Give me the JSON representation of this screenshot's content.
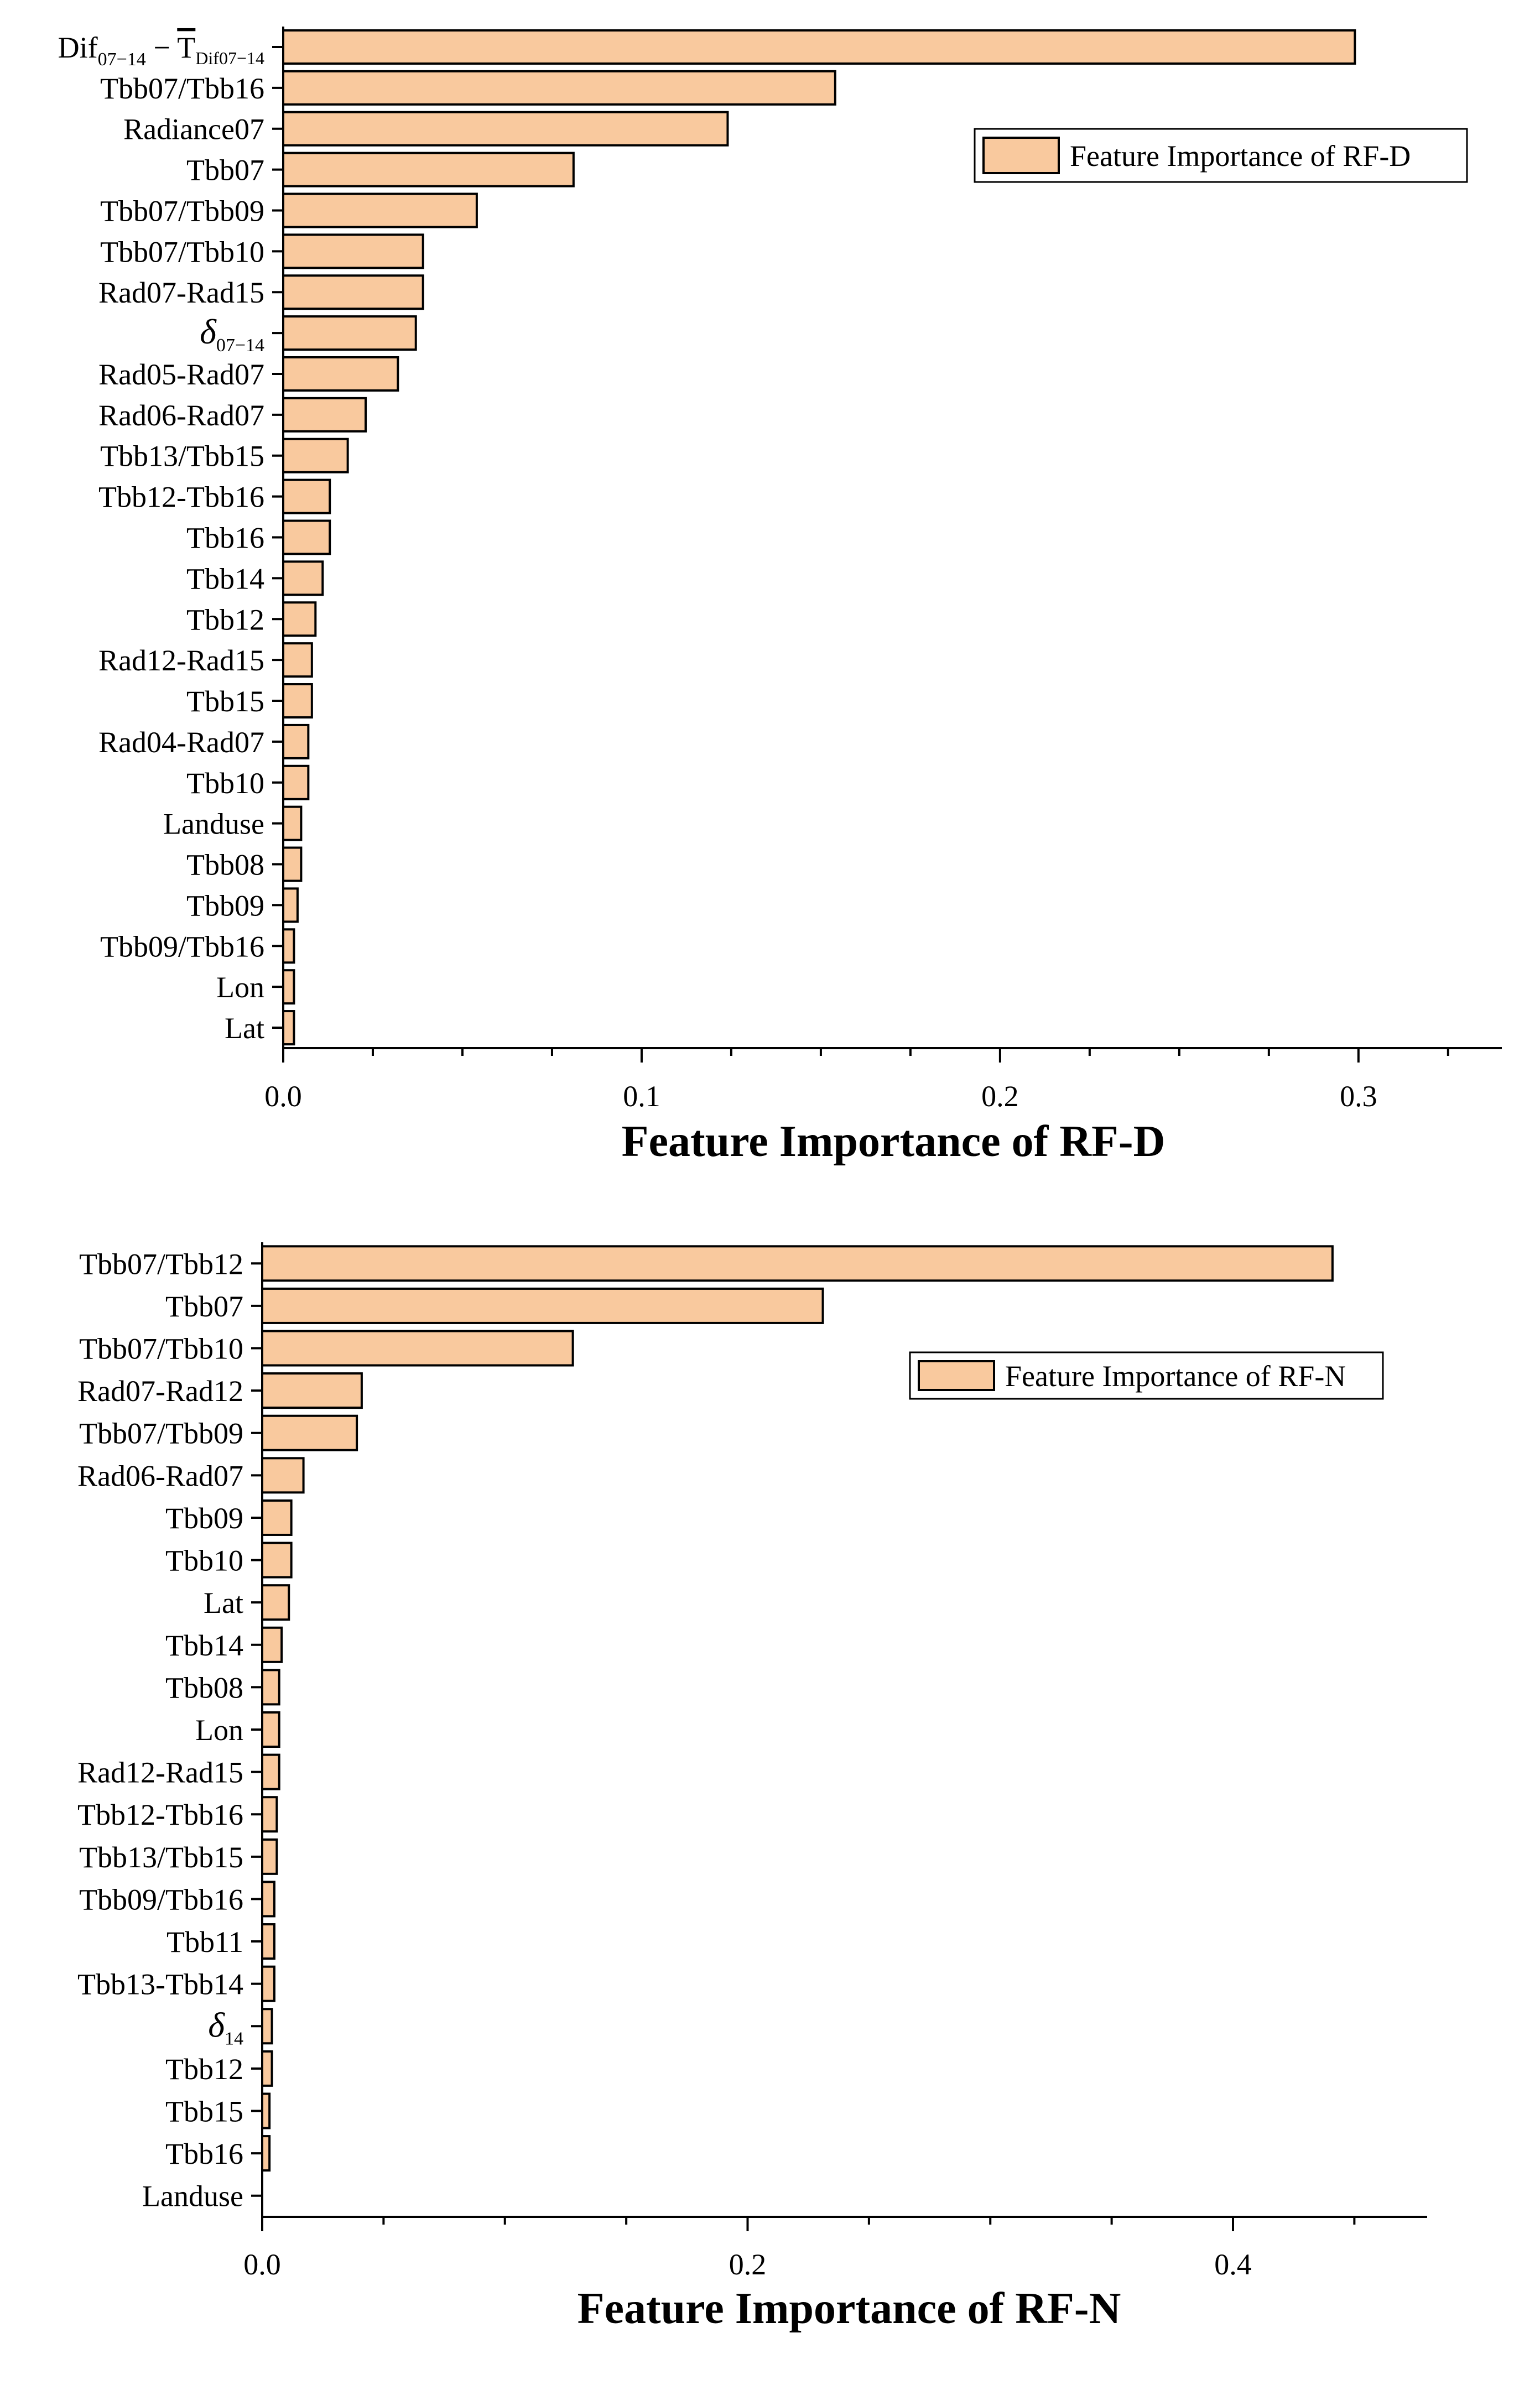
{
  "chart_data": [
    {
      "type": "bar",
      "orientation": "horizontal",
      "title": "",
      "xlabel": "Feature Importance of RF-D",
      "ylabel": "",
      "xlim": [
        0,
        0.34
      ],
      "xticks": [
        0.0,
        0.1,
        0.2,
        0.3
      ],
      "xtick_labels": [
        "0.0",
        "0.1",
        "0.2",
        "0.3"
      ],
      "grid": false,
      "legend": {
        "label": "Feature Importance of RF-D",
        "placement": "top-right"
      },
      "bar_color": "#f9c99e",
      "edge_color": "#000000",
      "categories": [
        "Dif07-14 − T̄Dif07-14",
        "Tbb07/Tbb16",
        "Radiance07",
        "Tbb07",
        "Tbb07/Tbb09",
        "Tbb07/Tbb10",
        "Rad07-Rad15",
        "δ07-14",
        "Rad05-Rad07",
        "Rad06-Rad07",
        "Tbb13/Tbb15",
        "Tbb12-Tbb16",
        "Tbb16",
        "Tbb14",
        "Tbb12",
        "Rad12-Rad15",
        "Tbb15",
        "Rad04-Rad07",
        "Tbb10",
        "Landuse",
        "Tbb08",
        "Tbb09",
        "Tbb09/Tbb16",
        "Lon",
        "Lat"
      ],
      "labels": [
        {
          "base": "Dif",
          "sub": "07−14",
          "mid": " − ",
          "base2": "T",
          "overline2": true,
          "sub2": "Dif07−14"
        },
        {
          "base": "Tbb07/Tbb16"
        },
        {
          "base": "Radiance07"
        },
        {
          "base": "Tbb07"
        },
        {
          "base": "Tbb07/Tbb09"
        },
        {
          "base": "Tbb07/Tbb10"
        },
        {
          "base": "Rad07-Rad15"
        },
        {
          "base": "δ",
          "sub": "07−14",
          "italic": true
        },
        {
          "base": "Rad05-Rad07"
        },
        {
          "base": "Rad06-Rad07"
        },
        {
          "base": "Tbb13/Tbb15"
        },
        {
          "base": "Tbb12-Tbb16"
        },
        {
          "base": "Tbb16"
        },
        {
          "base": "Tbb14"
        },
        {
          "base": "Tbb12"
        },
        {
          "base": "Rad12-Rad15"
        },
        {
          "base": "Tbb15"
        },
        {
          "base": "Rad04-Rad07"
        },
        {
          "base": "Tbb10"
        },
        {
          "base": "Landuse"
        },
        {
          "base": "Tbb08"
        },
        {
          "base": "Tbb09"
        },
        {
          "base": "Tbb09/Tbb16"
        },
        {
          "base": "Lon"
        },
        {
          "base": "Lat"
        }
      ],
      "values": [
        0.299,
        0.154,
        0.124,
        0.081,
        0.054,
        0.039,
        0.039,
        0.037,
        0.032,
        0.023,
        0.018,
        0.013,
        0.013,
        0.011,
        0.009,
        0.008,
        0.008,
        0.007,
        0.007,
        0.005,
        0.005,
        0.004,
        0.003,
        0.003,
        0.003
      ]
    },
    {
      "type": "bar",
      "orientation": "horizontal",
      "title": "",
      "xlabel": "Feature Importance of RF-N",
      "ylabel": "",
      "xlim": [
        0,
        0.48
      ],
      "xticks": [
        0.0,
        0.2,
        0.4
      ],
      "xtick_labels": [
        "0.0",
        "0.2",
        "0.4"
      ],
      "grid": false,
      "legend": {
        "label": "Feature Importance of RF-N",
        "placement": "top-right"
      },
      "bar_color": "#f9c99e",
      "edge_color": "#000000",
      "categories": [
        "Tbb07/Tbb12",
        "Tbb07",
        "Tbb07/Tbb10",
        "Rad07-Rad12",
        "Tbb07/Tbb09",
        "Rad06-Rad07",
        "Tbb09",
        "Tbb10",
        "Lat",
        "Tbb14",
        "Tbb08",
        "Lon",
        "Rad12-Rad15",
        "Tbb12-Tbb16",
        "Tbb13/Tbb15",
        "Tbb09/Tbb16",
        "Tbb11",
        "Tbb13-Tbb14",
        "δ14",
        "Tbb12",
        "Tbb15",
        "Tbb16",
        "Landuse"
      ],
      "labels": [
        {
          "base": "Tbb07/Tbb12"
        },
        {
          "base": "Tbb07"
        },
        {
          "base": "Tbb07/Tbb10"
        },
        {
          "base": "Rad07-Rad12"
        },
        {
          "base": "Tbb07/Tbb09"
        },
        {
          "base": "Rad06-Rad07"
        },
        {
          "base": "Tbb09"
        },
        {
          "base": "Tbb10"
        },
        {
          "base": "Lat"
        },
        {
          "base": "Tbb14"
        },
        {
          "base": "Tbb08"
        },
        {
          "base": "Lon"
        },
        {
          "base": "Rad12-Rad15"
        },
        {
          "base": "Tbb12-Tbb16"
        },
        {
          "base": "Tbb13/Tbb15"
        },
        {
          "base": "Tbb09/Tbb16"
        },
        {
          "base": "Tbb11"
        },
        {
          "base": "Tbb13-Tbb14"
        },
        {
          "base": "δ",
          "sub": "14",
          "italic": true
        },
        {
          "base": "Tbb12"
        },
        {
          "base": "Tbb15"
        },
        {
          "base": "Tbb16"
        },
        {
          "base": "Landuse"
        }
      ],
      "values": [
        0.441,
        0.231,
        0.128,
        0.041,
        0.039,
        0.017,
        0.012,
        0.012,
        0.011,
        0.008,
        0.007,
        0.007,
        0.007,
        0.006,
        0.006,
        0.005,
        0.005,
        0.005,
        0.004,
        0.004,
        0.003,
        0.003,
        0.0
      ]
    }
  ]
}
